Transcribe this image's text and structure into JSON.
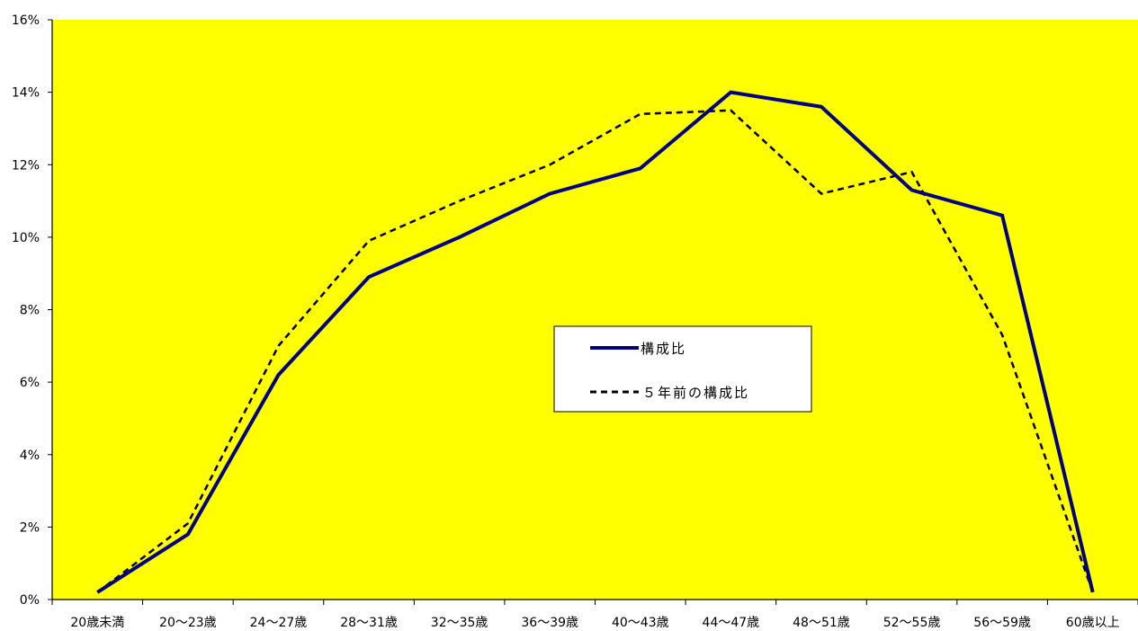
{
  "chart_data": {
    "type": "line",
    "title": "",
    "xlabel": "",
    "ylabel": "",
    "categories": [
      "20歳未満",
      "20～23歳",
      "24～27歳",
      "28～31歳",
      "32～35歳",
      "36～39歳",
      "40～43歳",
      "44～47歳",
      "48～51歳",
      "52～55歳",
      "56～59歳",
      "60歳以上"
    ],
    "ylim": [
      0,
      16
    ],
    "yticks": [
      "0%",
      "2%",
      "4%",
      "6%",
      "8%",
      "10%",
      "12%",
      "14%",
      "16%"
    ],
    "grid": false,
    "legend_position": "center-right",
    "plot_background": "#FFFF00",
    "series": [
      {
        "name": "構成比",
        "style": "solid",
        "color": "#000080",
        "values": [
          0.2,
          1.8,
          6.2,
          8.9,
          10.0,
          11.2,
          11.9,
          14.0,
          13.6,
          11.3,
          10.6,
          0.2
        ]
      },
      {
        "name": "５年前の構成比",
        "style": "dashed",
        "color": "#000000",
        "values": [
          0.2,
          2.1,
          7.0,
          9.9,
          11.0,
          12.0,
          13.4,
          13.5,
          11.2,
          11.8,
          7.3,
          0.2
        ]
      }
    ]
  }
}
